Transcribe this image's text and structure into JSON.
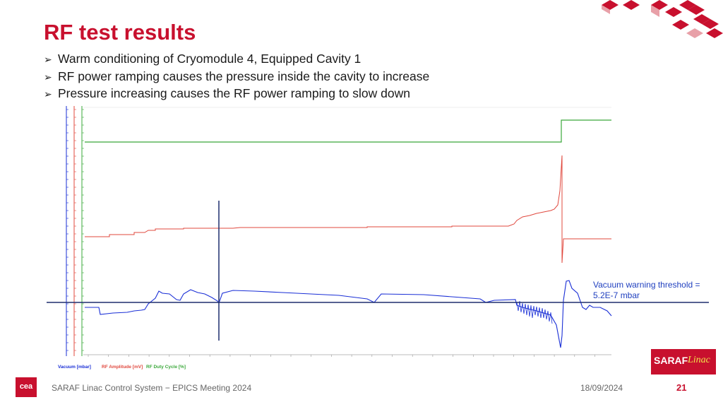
{
  "slide": {
    "title": "RF test results",
    "bullets": [
      "Warm conditioning of Cryomodule 4, Equipped Cavity 1",
      "RF power ramping causes the pressure inside the cavity to increase",
      "Pressure increasing causes the RF power ramping to slow down"
    ],
    "bullet_glyph": "➢"
  },
  "annotation": {
    "threshold_line1": "Vacuum warning threshold =",
    "threshold_line2": "5.2E-7 mbar"
  },
  "legend": {
    "vacuum": "Vacuum [mbar]",
    "rf_amplitude": "RF Amplitude [mV]",
    "rf_duty": "RF Duty Cycle [%]"
  },
  "colors": {
    "accent": "#c8102e",
    "vacuum": "#1a2fd6",
    "rf_amplitude": "#e0483e",
    "rf_duty": "#3aa83a",
    "threshold_line": "#1f2f6f"
  },
  "logos": {
    "saraf": "SARAF",
    "linac": "Linac",
    "cea": "cea"
  },
  "footer": {
    "text": "SARAF Linac Control System − EPICS Meeting 2024",
    "date": "18/09/2024",
    "page": "21"
  }
}
